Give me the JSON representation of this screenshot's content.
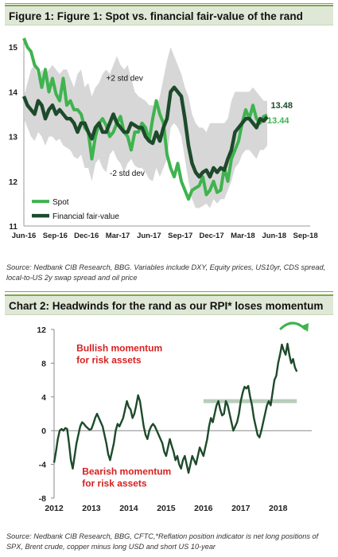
{
  "figure1": {
    "title": "Figure 1: Figure 1: Spot vs. financial fair-value of the rand",
    "source": "Source: Nedbank CIB Research, BBG. Variables include DXY, Equity prices, US10yr, CDS spread, local-to-US 2y swap spread and oil price"
  },
  "figure2": {
    "title": "Chart 2:  Headwinds for the rand as our RPI* loses momentum",
    "source": "Source: Nedbank CIB Research, BBG, CFTC,*Reflation position indicator is net long positions of SPX, Brent crude, copper minus long USD and short US 10-year"
  },
  "chart_data": [
    {
      "type": "line",
      "x_tick_labels": [
        "Jun-16",
        "Sep-16",
        "Dec-16",
        "Mar-17",
        "Jun-17",
        "Sep-17",
        "Dec-17",
        "Mar-18",
        "Jun-18",
        "Sep-18"
      ],
      "y_ticks": [
        11,
        12,
        13,
        14,
        15
      ],
      "ylim": [
        11,
        15.2
      ],
      "legend_position": "bottom-left",
      "annotations": [
        "+2 std dev",
        "-2 std dev"
      ],
      "end_labels": [
        "13.48",
        "13.44"
      ],
      "colors": {
        "spot": "#3fb34f",
        "fair_value": "#1d4a2b",
        "band": "#d0d0d0"
      },
      "series": [
        {
          "name": "Spot",
          "x": [
            0,
            2,
            4,
            6,
            8,
            10,
            12,
            14,
            16,
            18,
            20,
            22,
            24,
            26,
            28,
            30,
            32,
            34,
            36,
            38,
            40,
            42,
            44,
            46,
            48,
            50,
            52,
            54,
            56,
            58,
            60,
            62,
            64,
            66,
            68,
            70,
            72,
            74,
            76,
            78,
            80,
            82,
            84,
            86,
            88,
            90,
            92,
            94,
            96,
            98,
            100,
            102,
            104,
            106,
            108,
            110,
            112,
            114,
            116,
            118,
            120,
            122,
            124,
            126,
            128,
            130,
            132,
            134,
            136
          ],
          "values": [
            15.2,
            15.0,
            14.9,
            14.6,
            14.5,
            14.1,
            14.5,
            14.0,
            14.3,
            13.95,
            13.8,
            14.3,
            13.7,
            13.8,
            13.6,
            13.6,
            13.5,
            13.2,
            13.1,
            12.5,
            13.0,
            13.3,
            13.4,
            13.25,
            13.0,
            13.1,
            13.3,
            13.45,
            13.1,
            13.0,
            12.7,
            13.1,
            13.1,
            13.3,
            13.2,
            12.9,
            13.4,
            13.8,
            13.5,
            13.3,
            12.6,
            12.3,
            12.1,
            12.4,
            12.0,
            11.8,
            11.6,
            11.8,
            11.85,
            11.9,
            12.1,
            11.7,
            11.8,
            12.0,
            11.75,
            11.8,
            12.3,
            12.0,
            12.5,
            12.7,
            12.9,
            13.3,
            13.6,
            13.4,
            13.7,
            13.4,
            13.3,
            13.45,
            13.48
          ]
        },
        {
          "name": "Financial fair-value",
          "x": [
            0,
            2,
            4,
            6,
            8,
            10,
            12,
            14,
            16,
            18,
            20,
            22,
            24,
            26,
            28,
            30,
            32,
            34,
            36,
            38,
            40,
            42,
            44,
            46,
            48,
            50,
            52,
            54,
            56,
            58,
            60,
            62,
            64,
            66,
            68,
            70,
            72,
            74,
            76,
            78,
            80,
            82,
            84,
            86,
            88,
            90,
            92,
            94,
            96,
            98,
            100,
            102,
            104,
            106,
            108,
            110,
            112,
            114,
            116,
            118,
            120,
            122,
            124,
            126,
            128,
            130,
            132,
            134,
            136
          ],
          "values": [
            13.9,
            13.7,
            13.6,
            13.5,
            13.8,
            13.7,
            13.4,
            13.6,
            13.7,
            13.5,
            13.6,
            13.5,
            13.4,
            13.4,
            13.3,
            13.1,
            13.3,
            13.3,
            13.1,
            12.95,
            13.2,
            13.3,
            13.1,
            13.1,
            13.3,
            13.5,
            13.3,
            13.2,
            13.1,
            13.1,
            13.3,
            13.25,
            13.2,
            13.2,
            13.0,
            12.9,
            12.85,
            13.1,
            12.9,
            13.2,
            13.4,
            14.0,
            14.1,
            14.0,
            13.9,
            13.4,
            12.8,
            12.4,
            12.2,
            12.1,
            12.2,
            12.25,
            12.1,
            12.3,
            12.2,
            12.3,
            12.25,
            12.5,
            12.7,
            13.1,
            13.2,
            13.3,
            13.4,
            13.4,
            13.3,
            13.2,
            13.4,
            13.35,
            13.44
          ]
        },
        {
          "name": "std dev band",
          "upper": [
            13.9,
            14.2,
            14.5,
            14.6,
            14.3,
            14.5,
            14.4,
            14.5,
            14.6,
            14.5,
            14.4,
            14.5,
            14.5,
            14.3,
            14.1,
            14.4,
            14.5,
            14.1,
            14.2,
            13.9,
            14.1,
            14.2,
            14.4,
            14.5,
            14.4,
            14.6,
            14.8,
            14.6,
            14.5,
            14.6,
            14.3,
            14.0,
            13.9,
            13.85,
            13.8,
            13.7,
            13.7,
            13.6,
            13.9,
            14.3,
            14.7,
            15.0,
            14.8,
            14.6,
            14.4,
            14.1,
            13.9,
            13.5,
            13.3,
            13.2,
            13.2,
            13.1,
            13.3,
            13.3,
            13.3,
            13.3,
            13.3,
            13.4,
            13.8,
            14.0,
            14.0,
            14.0,
            14.0,
            14.0,
            14.1,
            14.0,
            13.9,
            13.8,
            13.8
          ],
          "lower": [
            13.4,
            13.2,
            13.0,
            12.9,
            13.1,
            13.0,
            12.8,
            13.0,
            13.0,
            12.9,
            12.95,
            12.8,
            12.75,
            12.7,
            12.55,
            12.5,
            12.6,
            12.3,
            12.3,
            12.0,
            12.4,
            12.5,
            12.3,
            12.2,
            12.6,
            12.7,
            12.5,
            12.4,
            12.2,
            12.4,
            12.5,
            12.35,
            12.3,
            12.3,
            12.2,
            12.05,
            12.0,
            12.3,
            12.1,
            12.3,
            12.5,
            13.2,
            13.3,
            13.2,
            13.0,
            12.5,
            12.0,
            11.6,
            11.4,
            11.4,
            11.45,
            11.5,
            11.4,
            11.6,
            11.5,
            11.6,
            11.6,
            11.8,
            12.0,
            12.3,
            12.4,
            12.6,
            12.7,
            12.7,
            12.6,
            12.5,
            12.7,
            12.7,
            12.8
          ]
        }
      ]
    },
    {
      "type": "line",
      "x_tick_labels": [
        "2012",
        "2013",
        "2014",
        "2015",
        "2016",
        "2017",
        "2018"
      ],
      "y_ticks": [
        -8,
        -4,
        0,
        4,
        8,
        12
      ],
      "ylim": [
        -8,
        12
      ],
      "annotations": [
        "Bullish momentum\nfor risk assets",
        "Bearish momentum\nfor risk assets"
      ],
      "reference_line": {
        "y": 3.5,
        "x_start": 2016.0,
        "x_end": 2018.5
      },
      "colors": {
        "line": "#1d4a2b",
        "reference": "#b8cdbb",
        "annotation_text": "#d62020",
        "arrow": "#3fb34f"
      },
      "series": [
        {
          "name": "RPI",
          "x": [
            2012.0,
            2012.05,
            2012.1,
            2012.15,
            2012.2,
            2012.25,
            2012.3,
            2012.35,
            2012.4,
            2012.45,
            2012.5,
            2012.55,
            2012.6,
            2012.65,
            2012.7,
            2012.75,
            2012.8,
            2012.85,
            2012.9,
            2012.95,
            2013.0,
            2013.05,
            2013.1,
            2013.15,
            2013.2,
            2013.25,
            2013.3,
            2013.35,
            2013.4,
            2013.45,
            2013.5,
            2013.55,
            2013.6,
            2013.65,
            2013.7,
            2013.75,
            2013.8,
            2013.85,
            2013.9,
            2013.95,
            2014.0,
            2014.05,
            2014.1,
            2014.15,
            2014.2,
            2014.25,
            2014.3,
            2014.35,
            2014.4,
            2014.45,
            2014.5,
            2014.55,
            2014.6,
            2014.65,
            2014.7,
            2014.75,
            2014.8,
            2014.85,
            2014.9,
            2014.95,
            2015.0,
            2015.05,
            2015.1,
            2015.15,
            2015.2,
            2015.25,
            2015.3,
            2015.35,
            2015.4,
            2015.45,
            2015.5,
            2015.55,
            2015.6,
            2015.65,
            2015.7,
            2015.75,
            2015.8,
            2015.85,
            2015.9,
            2015.95,
            2016.0,
            2016.05,
            2016.1,
            2016.15,
            2016.2,
            2016.25,
            2016.3,
            2016.35,
            2016.4,
            2016.45,
            2016.5,
            2016.55,
            2016.6,
            2016.65,
            2016.7,
            2016.75,
            2016.8,
            2016.85,
            2016.9,
            2016.95,
            2017.0,
            2017.05,
            2017.1,
            2017.15,
            2017.2,
            2017.25,
            2017.3,
            2017.35,
            2017.4,
            2017.45,
            2017.5,
            2017.55,
            2017.6,
            2017.65,
            2017.7,
            2017.75,
            2017.8,
            2017.85,
            2017.9,
            2017.95,
            2018.0,
            2018.05,
            2018.1,
            2018.15,
            2018.2,
            2018.25,
            2018.3,
            2018.35,
            2018.4,
            2018.45,
            2018.5
          ],
          "values": [
            -3.8,
            -2.5,
            -1.0,
            0.0,
            0.2,
            0.0,
            0.3,
            0.2,
            -1.5,
            -3.5,
            -4.5,
            -3.0,
            -1.5,
            -0.5,
            0.5,
            1.0,
            0.8,
            0.5,
            0.3,
            0.1,
            0.2,
            0.8,
            1.5,
            2.0,
            1.5,
            1.0,
            0.5,
            -0.5,
            -1.5,
            -2.8,
            -3.5,
            -2.5,
            -1.5,
            0.0,
            0.8,
            0.5,
            1.0,
            1.5,
            2.5,
            3.5,
            2.8,
            2.5,
            1.5,
            2.0,
            3.0,
            4.2,
            3.5,
            2.0,
            0.5,
            -0.5,
            -1.0,
            0.0,
            0.5,
            0.8,
            0.5,
            0.0,
            -0.5,
            -1.0,
            -1.5,
            -2.5,
            -3.0,
            -2.0,
            -1.0,
            -1.8,
            -2.5,
            -3.5,
            -3.0,
            -4.0,
            -4.5,
            -3.5,
            -3.0,
            -4.0,
            -5.0,
            -4.0,
            -3.0,
            -3.5,
            -4.0,
            -3.0,
            -2.0,
            -2.5,
            -3.0,
            -2.0,
            -1.0,
            0.5,
            1.5,
            1.0,
            2.0,
            3.0,
            3.5,
            2.5,
            1.8,
            2.0,
            3.5,
            3.0,
            2.0,
            1.0,
            0.0,
            0.5,
            1.0,
            2.0,
            3.5,
            4.5,
            5.2,
            5.0,
            5.3,
            4.0,
            3.0,
            1.5,
            0.5,
            -0.5,
            -0.8,
            0.0,
            1.0,
            2.0,
            3.0,
            3.5,
            3.0,
            4.5,
            6.0,
            6.5,
            8.0,
            9.0,
            10.2,
            9.5,
            9.0,
            10.3,
            9.0,
            8.0,
            8.5,
            7.5,
            7.0
          ]
        }
      ]
    }
  ]
}
